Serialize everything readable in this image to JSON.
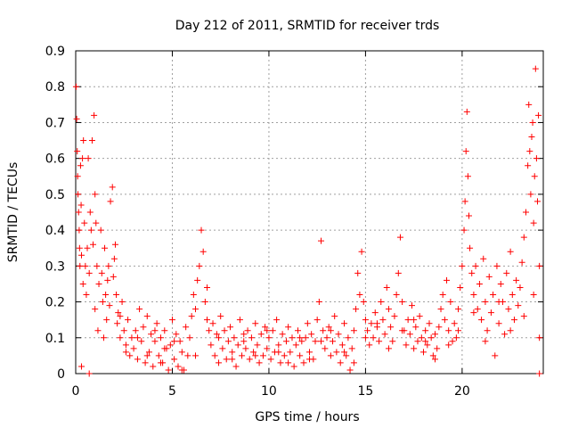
{
  "chart_data": {
    "type": "scatter",
    "title": "Day 212 of 2011, SRMTID for receiver trds",
    "xlabel": "GPS time / hours",
    "ylabel": "SRMTID / TECUs",
    "xlim": [
      0,
      24.2
    ],
    "ylim": [
      0,
      0.9
    ],
    "xticks": [
      0,
      5,
      10,
      15,
      20
    ],
    "xtick_labels": [
      "0",
      "5",
      "10",
      "15",
      "20"
    ],
    "yticks": [
      0,
      0.1,
      0.2,
      0.3,
      0.4,
      0.5,
      0.6,
      0.7,
      0.8,
      0.9
    ],
    "ytick_labels": [
      "0",
      "0.1",
      "0.2",
      "0.3",
      "0.4",
      "0.5",
      "0.6",
      "0.7",
      "0.8",
      "0.9"
    ],
    "grid": true,
    "marker": "+",
    "color": "#ff0000",
    "series": [
      {
        "name": "SRMTID",
        "points": [
          [
            0.02,
            0.8
          ],
          [
            0.05,
            0.71
          ],
          [
            0.08,
            0.62
          ],
          [
            0.1,
            0.55
          ],
          [
            0.12,
            0.5
          ],
          [
            0.15,
            0.45
          ],
          [
            0.18,
            0.4
          ],
          [
            0.2,
            0.35
          ],
          [
            0.22,
            0.3
          ],
          [
            0.25,
            0.58
          ],
          [
            0.28,
            0.47
          ],
          [
            0.3,
            0.33
          ],
          [
            0.35,
            0.6
          ],
          [
            0.38,
            0.25
          ],
          [
            0.4,
            0.65
          ],
          [
            0.45,
            0.42
          ],
          [
            0.5,
            0.3
          ],
          [
            0.55,
            0.22
          ],
          [
            0.6,
            0.35
          ],
          [
            0.65,
            0.6
          ],
          [
            0.7,
            0.28
          ],
          [
            0.75,
            0.45
          ],
          [
            0.8,
            0.4
          ],
          [
            0.85,
            0.65
          ],
          [
            0.9,
            0.36
          ],
          [
            0.95,
            0.72
          ],
          [
            1.0,
            0.5
          ],
          [
            1.05,
            0.42
          ],
          [
            1.1,
            0.3
          ],
          [
            1.2,
            0.25
          ],
          [
            1.3,
            0.4
          ],
          [
            1.4,
            0.2
          ],
          [
            1.5,
            0.35
          ],
          [
            1.6,
            0.15
          ],
          [
            1.7,
            0.3
          ],
          [
            1.8,
            0.48
          ],
          [
            1.9,
            0.52
          ],
          [
            2.0,
            0.32
          ],
          [
            2.1,
            0.22
          ],
          [
            2.2,
            0.17
          ],
          [
            0.3,
            0.02
          ],
          [
            0.7,
            0.0
          ],
          [
            1.0,
            0.18
          ],
          [
            1.15,
            0.12
          ],
          [
            1.35,
            0.28
          ],
          [
            1.45,
            0.1
          ],
          [
            1.55,
            0.22
          ],
          [
            1.65,
            0.26
          ],
          [
            1.75,
            0.19
          ],
          [
            1.95,
            0.27
          ],
          [
            2.05,
            0.36
          ],
          [
            2.15,
            0.14
          ],
          [
            2.3,
            0.1
          ],
          [
            2.4,
            0.2
          ],
          [
            2.5,
            0.12
          ],
          [
            2.6,
            0.08
          ],
          [
            2.7,
            0.15
          ],
          [
            2.8,
            0.05
          ],
          [
            2.9,
            0.1
          ],
          [
            3.0,
            0.07
          ],
          [
            3.1,
            0.12
          ],
          [
            3.2,
            0.04
          ],
          [
            3.3,
            0.18
          ],
          [
            3.4,
            0.09
          ],
          [
            3.5,
            0.13
          ],
          [
            3.6,
            0.03
          ],
          [
            3.7,
            0.16
          ],
          [
            3.8,
            0.06
          ],
          [
            3.9,
            0.11
          ],
          [
            4.0,
            0.02
          ],
          [
            4.1,
            0.09
          ],
          [
            4.2,
            0.14
          ],
          [
            4.3,
            0.05
          ],
          [
            4.4,
            0.1
          ],
          [
            4.5,
            0.03
          ],
          [
            4.6,
            0.12
          ],
          [
            4.7,
            0.07
          ],
          [
            4.8,
            0.01
          ],
          [
            4.9,
            0.08
          ],
          [
            5.0,
            0.15
          ],
          [
            5.1,
            0.04
          ],
          [
            5.2,
            0.11
          ],
          [
            5.3,
            0.02
          ],
          [
            5.4,
            0.09
          ],
          [
            5.5,
            0.06
          ],
          [
            5.6,
            0.01
          ],
          [
            5.7,
            0.13
          ],
          [
            5.8,
            0.05
          ],
          [
            5.9,
            0.1
          ],
          [
            6.0,
            0.16
          ],
          [
            6.1,
            0.22
          ],
          [
            6.2,
            0.18
          ],
          [
            6.3,
            0.26
          ],
          [
            6.4,
            0.3
          ],
          [
            6.5,
            0.4
          ],
          [
            6.6,
            0.34
          ],
          [
            6.7,
            0.2
          ],
          [
            6.8,
            0.24
          ],
          [
            6.9,
            0.12
          ],
          [
            7.0,
            0.08
          ],
          [
            7.1,
            0.14
          ],
          [
            7.2,
            0.05
          ],
          [
            7.3,
            0.11
          ],
          [
            7.4,
            0.03
          ],
          [
            7.5,
            0.16
          ],
          [
            7.6,
            0.07
          ],
          [
            7.7,
            0.12
          ],
          [
            7.8,
            0.04
          ],
          [
            7.9,
            0.09
          ],
          [
            8.0,
            0.13
          ],
          [
            8.1,
            0.06
          ],
          [
            8.2,
            0.1
          ],
          [
            8.3,
            0.02
          ],
          [
            8.4,
            0.08
          ],
          [
            8.5,
            0.15
          ],
          [
            8.6,
            0.05
          ],
          [
            8.7,
            0.11
          ],
          [
            8.8,
            0.07
          ],
          [
            8.9,
            0.12
          ],
          [
            9.0,
            0.04
          ],
          [
            9.1,
            0.1
          ],
          [
            9.2,
            0.06
          ],
          [
            9.3,
            0.14
          ],
          [
            9.4,
            0.08
          ],
          [
            9.5,
            0.03
          ],
          [
            9.6,
            0.11
          ],
          [
            9.7,
            0.05
          ],
          [
            9.8,
            0.13
          ],
          [
            9.9,
            0.07
          ],
          [
            10.0,
            0.1
          ],
          [
            10.1,
            0.04
          ],
          [
            10.2,
            0.12
          ],
          [
            10.3,
            0.06
          ],
          [
            10.4,
            0.15
          ],
          [
            10.5,
            0.08
          ],
          [
            10.6,
            0.03
          ],
          [
            10.7,
            0.11
          ],
          [
            10.8,
            0.05
          ],
          [
            10.9,
            0.09
          ],
          [
            11.0,
            0.13
          ],
          [
            11.1,
            0.06
          ],
          [
            11.2,
            0.1
          ],
          [
            11.3,
            0.02
          ],
          [
            11.4,
            0.08
          ],
          [
            11.5,
            0.12
          ],
          [
            11.6,
            0.05
          ],
          [
            11.7,
            0.09
          ],
          [
            11.8,
            0.03
          ],
          [
            11.9,
            0.1
          ],
          [
            12.0,
            0.14
          ],
          [
            12.1,
            0.06
          ],
          [
            12.2,
            0.11
          ],
          [
            12.3,
            0.04
          ],
          [
            12.4,
            0.09
          ],
          [
            12.5,
            0.15
          ],
          [
            12.6,
            0.2
          ],
          [
            12.7,
            0.37
          ],
          [
            12.8,
            0.12
          ],
          [
            12.9,
            0.07
          ],
          [
            13.0,
            0.1
          ],
          [
            13.1,
            0.13
          ],
          [
            13.2,
            0.05
          ],
          [
            13.3,
            0.09
          ],
          [
            13.4,
            0.16
          ],
          [
            13.5,
            0.06
          ],
          [
            13.6,
            0.11
          ],
          [
            13.7,
            0.03
          ],
          [
            13.8,
            0.08
          ],
          [
            13.9,
            0.14
          ],
          [
            14.0,
            0.05
          ],
          [
            14.1,
            0.1
          ],
          [
            14.2,
            0.01
          ],
          [
            14.3,
            0.07
          ],
          [
            14.4,
            0.12
          ],
          [
            14.5,
            0.18
          ],
          [
            14.6,
            0.28
          ],
          [
            14.7,
            0.22
          ],
          [
            14.8,
            0.34
          ],
          [
            14.9,
            0.2
          ],
          [
            15.0,
            0.15
          ],
          [
            15.1,
            0.12
          ],
          [
            15.2,
            0.08
          ],
          [
            15.3,
            0.14
          ],
          [
            15.4,
            0.1
          ],
          [
            15.5,
            0.17
          ],
          [
            15.6,
            0.13
          ],
          [
            15.7,
            0.09
          ],
          [
            15.8,
            0.2
          ],
          [
            15.9,
            0.15
          ],
          [
            16.0,
            0.11
          ],
          [
            16.1,
            0.24
          ],
          [
            16.2,
            0.18
          ],
          [
            16.3,
            0.13
          ],
          [
            16.4,
            0.09
          ],
          [
            16.5,
            0.16
          ],
          [
            16.6,
            0.22
          ],
          [
            16.7,
            0.28
          ],
          [
            16.8,
            0.38
          ],
          [
            16.9,
            0.2
          ],
          [
            17.0,
            0.12
          ],
          [
            17.1,
            0.08
          ],
          [
            17.2,
            0.15
          ],
          [
            17.3,
            0.11
          ],
          [
            17.4,
            0.19
          ],
          [
            17.5,
            0.07
          ],
          [
            17.6,
            0.13
          ],
          [
            17.7,
            0.09
          ],
          [
            17.8,
            0.16
          ],
          [
            17.9,
            0.1
          ],
          [
            18.0,
            0.06
          ],
          [
            18.1,
            0.12
          ],
          [
            18.2,
            0.08
          ],
          [
            18.3,
            0.14
          ],
          [
            18.4,
            0.1
          ],
          [
            18.5,
            0.05
          ],
          [
            18.6,
            0.11
          ],
          [
            18.7,
            0.07
          ],
          [
            18.8,
            0.13
          ],
          [
            18.9,
            0.18
          ],
          [
            19.0,
            0.22
          ],
          [
            19.1,
            0.15
          ],
          [
            19.2,
            0.26
          ],
          [
            19.3,
            0.12
          ],
          [
            19.4,
            0.2
          ],
          [
            19.5,
            0.09
          ],
          [
            19.6,
            0.14
          ],
          [
            19.7,
            0.1
          ],
          [
            19.8,
            0.18
          ],
          [
            19.9,
            0.24
          ],
          [
            20.0,
            0.3
          ],
          [
            20.1,
            0.4
          ],
          [
            20.15,
            0.48
          ],
          [
            20.2,
            0.62
          ],
          [
            20.25,
            0.73
          ],
          [
            20.3,
            0.55
          ],
          [
            20.35,
            0.44
          ],
          [
            20.4,
            0.35
          ],
          [
            20.5,
            0.28
          ],
          [
            20.6,
            0.22
          ],
          [
            20.7,
            0.3
          ],
          [
            20.8,
            0.18
          ],
          [
            20.9,
            0.25
          ],
          [
            21.0,
            0.15
          ],
          [
            21.1,
            0.32
          ],
          [
            21.2,
            0.2
          ],
          [
            21.3,
            0.12
          ],
          [
            21.4,
            0.27
          ],
          [
            21.5,
            0.17
          ],
          [
            21.6,
            0.22
          ],
          [
            21.7,
            0.05
          ],
          [
            21.8,
            0.3
          ],
          [
            21.9,
            0.14
          ],
          [
            22.0,
            0.25
          ],
          [
            22.1,
            0.2
          ],
          [
            22.2,
            0.11
          ],
          [
            22.3,
            0.28
          ],
          [
            22.4,
            0.18
          ],
          [
            22.5,
            0.34
          ],
          [
            22.6,
            0.22
          ],
          [
            22.7,
            0.15
          ],
          [
            22.8,
            0.26
          ],
          [
            22.9,
            0.19
          ],
          [
            23.0,
            0.24
          ],
          [
            23.1,
            0.31
          ],
          [
            23.2,
            0.38
          ],
          [
            23.3,
            0.45
          ],
          [
            23.4,
            0.58
          ],
          [
            23.45,
            0.75
          ],
          [
            23.5,
            0.62
          ],
          [
            23.55,
            0.5
          ],
          [
            23.6,
            0.66
          ],
          [
            23.65,
            0.7
          ],
          [
            23.7,
            0.42
          ],
          [
            23.75,
            0.55
          ],
          [
            23.8,
            0.85
          ],
          [
            23.85,
            0.6
          ],
          [
            23.9,
            0.48
          ],
          [
            23.95,
            0.72
          ],
          [
            24.0,
            0.1
          ],
          [
            24.0,
            0.0
          ],
          [
            2.3,
            0.16
          ],
          [
            2.6,
            0.06
          ],
          [
            3.2,
            0.1
          ],
          [
            3.7,
            0.05
          ],
          [
            4.1,
            0.12
          ],
          [
            4.4,
            0.03
          ],
          [
            4.6,
            0.07
          ],
          [
            5.1,
            0.09
          ],
          [
            5.5,
            0.01
          ],
          [
            6.2,
            0.05
          ],
          [
            6.8,
            0.15
          ],
          [
            7.4,
            0.1
          ],
          [
            8.1,
            0.04
          ],
          [
            8.7,
            0.09
          ],
          [
            9.3,
            0.05
          ],
          [
            9.9,
            0.12
          ],
          [
            10.5,
            0.06
          ],
          [
            11.0,
            0.03
          ],
          [
            11.6,
            0.1
          ],
          [
            12.1,
            0.04
          ],
          [
            12.7,
            0.09
          ],
          [
            13.2,
            0.12
          ],
          [
            13.9,
            0.06
          ],
          [
            14.4,
            0.03
          ],
          [
            15.0,
            0.1
          ],
          [
            15.6,
            0.14
          ],
          [
            16.2,
            0.07
          ],
          [
            16.9,
            0.12
          ],
          [
            17.5,
            0.15
          ],
          [
            18.1,
            0.09
          ],
          [
            18.6,
            0.04
          ],
          [
            19.3,
            0.08
          ],
          [
            19.8,
            0.12
          ],
          [
            20.6,
            0.17
          ],
          [
            21.2,
            0.09
          ],
          [
            21.9,
            0.2
          ],
          [
            22.5,
            0.12
          ],
          [
            23.2,
            0.16
          ],
          [
            23.7,
            0.22
          ],
          [
            24.0,
            0.3
          ]
        ]
      }
    ]
  }
}
